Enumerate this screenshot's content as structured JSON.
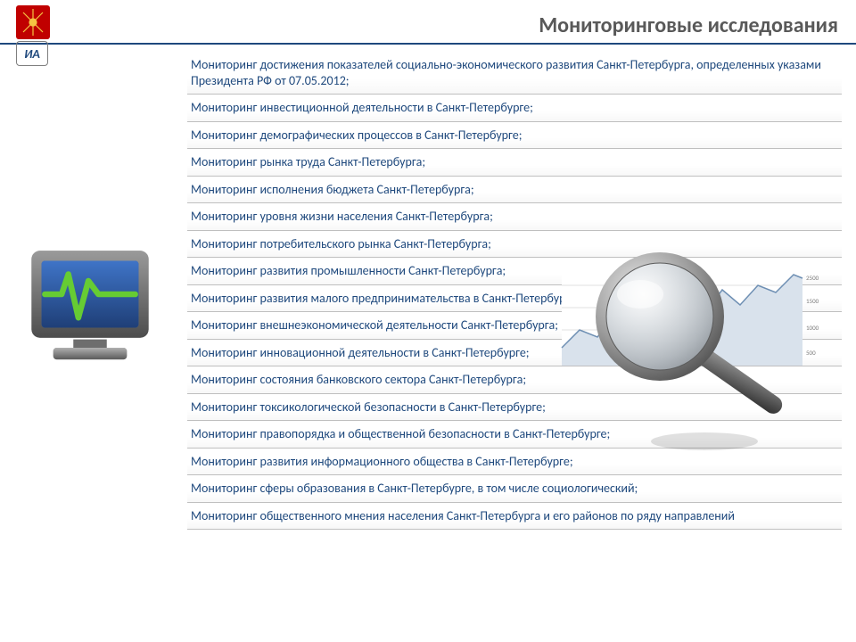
{
  "title": "Мониторинговые исследования",
  "title_color": "#595959",
  "accent_color": "#1f497d",
  "item_text_color": "#1f497d",
  "divider_color": "#bfbfbf",
  "items": [
    "Мониторинг достижения показателей социально-экономического развития Санкт-Петербурга, определенных указами Президента РФ от 07.05.2012;",
    "Мониторинг инвестиционной деятельности в Санкт-Петербурге;",
    "Мониторинг демографических процессов в Санкт-Петербурге;",
    "Мониторинг рынка труда Санкт-Петербурга;",
    "Мониторинг исполнения бюджета Санкт-Петербурга;",
    "Мониторинг уровня жизни населения Санкт-Петербурга;",
    "Мониторинг потребительского рынка Санкт-Петербурга;",
    "Мониторинг развития промышленности Санкт-Петербурга;",
    "Мониторинг развития малого предпринимательства в Санкт-Петербурге;",
    "Мониторинг внешнеэкономической деятельности Санкт-Петербурга;",
    "Мониторинг инновационной деятельности в Санкт-Петербурге;",
    "Мониторинг состояния банковского сектора Санкт-Петербурга;",
    "Мониторинг токсикологической безопасности в Санкт-Петербурге;",
    "Мониторинг правопорядка и общественной безопасности в Санкт-Петербурге;",
    "Мониторинг развития информационного общества в Санкт-Петербурге;",
    "Мониторинг сферы образования в Санкт-Петербурге, в том числе социологический;",
    "Мониторинг общественного мнения населения Санкт-Петербурга и его районов по ряду направлений"
  ],
  "monitor_icon": {
    "frame_color": "#6e6e6e",
    "screen_color": "#2a5caa",
    "wave_color": "#66cc33"
  },
  "chart": {
    "line_color": "#6e8fb3",
    "fill_color": "#d9e2ec",
    "grid_color": "#e0e0e0",
    "y_labels": [
      "2500",
      "1500",
      "1000",
      "500"
    ]
  },
  "magnifier": {
    "rim_color": "#8a8a8a",
    "glass_tint": "#e8eef5",
    "handle_color": "#4d4d4d"
  }
}
